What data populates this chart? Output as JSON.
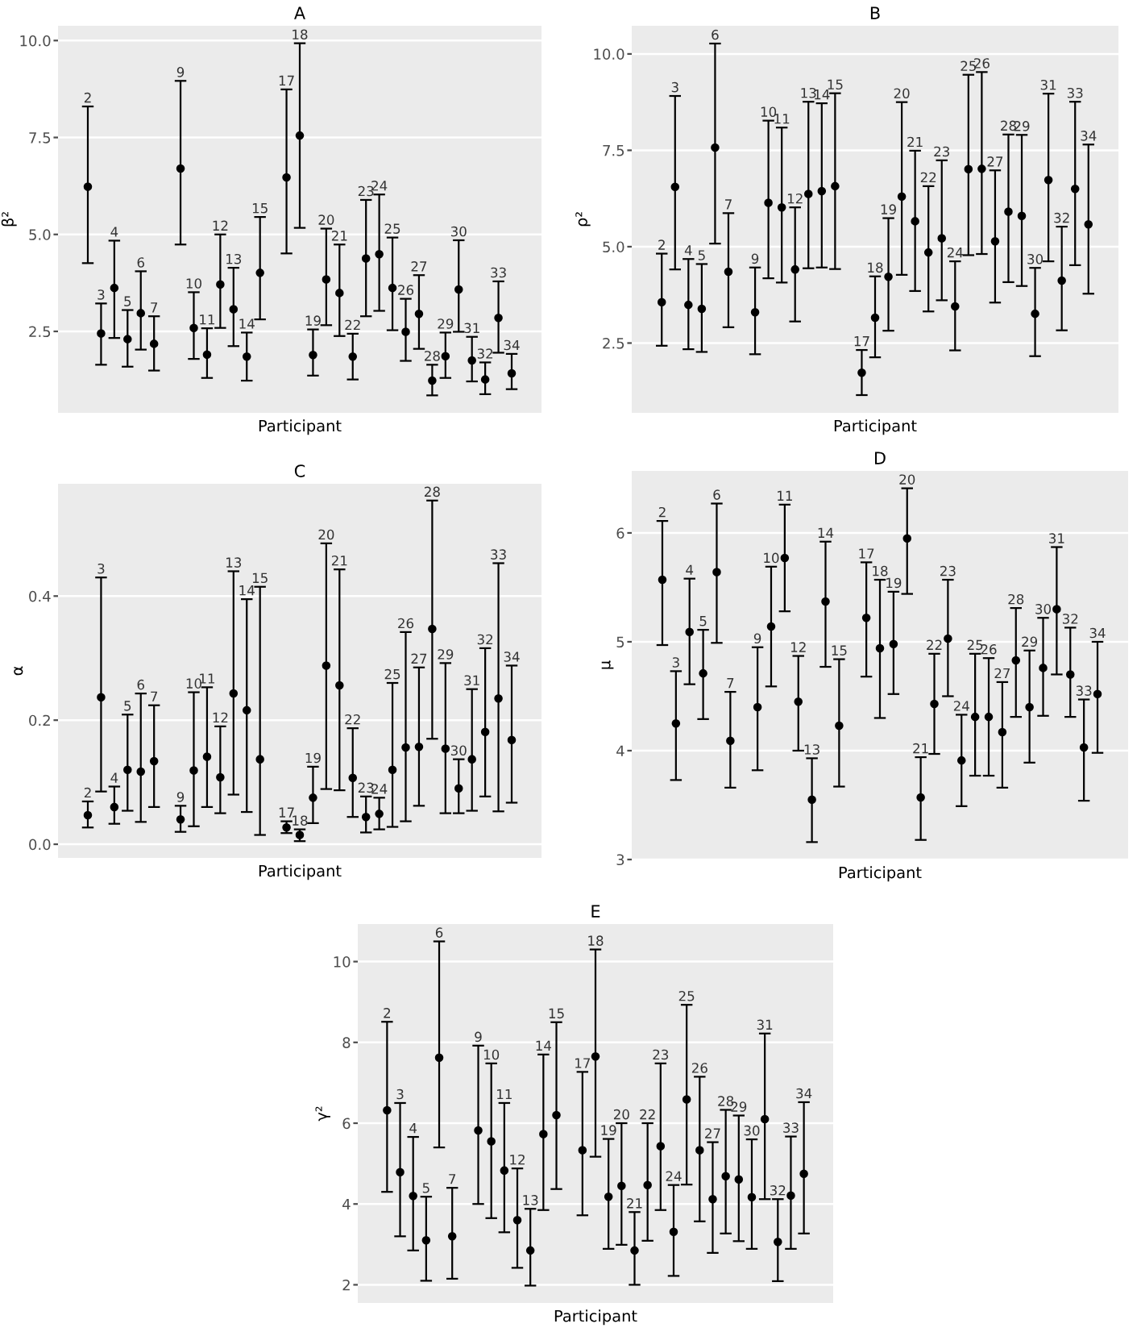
{
  "chart_data": [
    {
      "type": "scatter",
      "title": "A",
      "xlabel": "Participant",
      "ylabel": "β²",
      "color": "#000000",
      "marker": "circle",
      "grid": "y",
      "tick_labels": "y",
      "ylim": [
        0.4,
        10.38
      ],
      "yticks": [
        {
          "value": 2.5,
          "label": "2.5"
        },
        {
          "value": 5,
          "label": "5.0"
        },
        {
          "value": 7.5,
          "label": "7.5"
        },
        {
          "value": 10,
          "label": "10.0"
        }
      ],
      "categories": [
        "2",
        "3",
        "4",
        "5",
        "6",
        "7",
        null,
        "9",
        "10",
        "11",
        "12",
        "13",
        "14",
        "15",
        null,
        "17",
        "18",
        "19",
        "20",
        "21",
        "22",
        "23",
        "24",
        "25",
        "26",
        "27",
        "28",
        "29",
        "30",
        "31",
        "32",
        "33",
        "34"
      ],
      "values": [
        6.23,
        2.45,
        3.62,
        2.3,
        2.97,
        2.18,
        null,
        6.7,
        2.59,
        1.9,
        3.71,
        3.07,
        1.85,
        4.01,
        null,
        6.47,
        7.55,
        1.89,
        3.84,
        3.49,
        1.85,
        4.38,
        4.49,
        3.62,
        2.49,
        2.95,
        1.23,
        1.86,
        3.58,
        1.75,
        1.26,
        2.85,
        1.42
      ],
      "errors": [
        [
          4.26,
          8.3
        ],
        [
          1.64,
          3.22
        ],
        [
          2.33,
          4.84
        ],
        [
          1.59,
          3.05
        ],
        [
          2.03,
          4.05
        ],
        [
          1.49,
          2.89
        ],
        null,
        [
          4.74,
          8.96
        ],
        [
          1.79,
          3.51
        ],
        [
          1.3,
          2.58
        ],
        [
          2.59,
          5.0
        ],
        [
          2.12,
          4.14
        ],
        [
          1.23,
          2.47
        ],
        [
          2.81,
          5.45
        ],
        null,
        [
          4.51,
          8.74
        ],
        [
          5.17,
          9.93
        ],
        [
          1.36,
          2.55
        ],
        [
          2.66,
          5.15
        ],
        [
          2.38,
          4.74
        ],
        [
          1.26,
          2.44
        ],
        [
          2.89,
          5.89
        ],
        [
          3.03,
          6.03
        ],
        [
          2.53,
          4.92
        ],
        [
          1.74,
          3.34
        ],
        [
          2.05,
          3.95
        ],
        [
          0.85,
          1.64
        ],
        [
          1.3,
          2.47
        ],
        [
          2.49,
          4.85
        ],
        [
          1.21,
          2.36
        ],
        [
          0.88,
          1.7
        ],
        [
          1.95,
          3.79
        ],
        [
          1.01,
          1.92
        ]
      ]
    },
    {
      "type": "scatter",
      "title": "B",
      "xlabel": "Participant",
      "ylabel": "ρ²",
      "color": "#000000",
      "marker": "circle",
      "grid": "y",
      "tick_labels": "y",
      "ylim": [
        0.69,
        10.73
      ],
      "yticks": [
        {
          "value": 2.5,
          "label": "2.5"
        },
        {
          "value": 5,
          "label": "5.0"
        },
        {
          "value": 7.5,
          "label": "7.5"
        },
        {
          "value": 10,
          "label": "10.0"
        }
      ],
      "categories": [
        "2",
        "3",
        "4",
        "5",
        "6",
        "7",
        null,
        "9",
        "10",
        "11",
        "12",
        "13",
        "14",
        "15",
        null,
        "17",
        "18",
        "19",
        "20",
        "21",
        "22",
        "23",
        "24",
        "25",
        "26",
        "27",
        "28",
        "29",
        "30",
        "31",
        "32",
        "33",
        "34"
      ],
      "values": [
        3.56,
        6.55,
        3.49,
        3.39,
        7.57,
        4.35,
        null,
        3.3,
        6.14,
        6.02,
        4.41,
        6.37,
        6.44,
        6.57,
        null,
        1.73,
        3.16,
        4.22,
        6.3,
        5.66,
        4.85,
        5.22,
        3.45,
        7.01,
        7.02,
        5.14,
        5.91,
        5.8,
        3.26,
        6.73,
        4.12,
        6.5,
        5.58
      ],
      "errors": [
        [
          2.43,
          4.82
        ],
        [
          4.41,
          8.91
        ],
        [
          2.34,
          4.68
        ],
        [
          2.27,
          4.55
        ],
        [
          5.08,
          10.27
        ],
        [
          2.91,
          5.87
        ],
        null,
        [
          2.21,
          4.46
        ],
        [
          4.18,
          8.27
        ],
        [
          4.07,
          8.09
        ],
        [
          3.06,
          6.02
        ],
        [
          4.44,
          8.76
        ],
        [
          4.46,
          8.72
        ],
        [
          4.42,
          8.98
        ],
        null,
        [
          1.15,
          2.32
        ],
        [
          2.13,
          4.23
        ],
        [
          2.82,
          5.74
        ],
        [
          4.27,
          8.75
        ],
        [
          3.85,
          7.49
        ],
        [
          3.32,
          6.57
        ],
        [
          3.61,
          7.24
        ],
        [
          2.31,
          4.62
        ],
        [
          4.78,
          9.46
        ],
        [
          4.81,
          9.53
        ],
        [
          3.55,
          6.98
        ],
        [
          4.08,
          7.91
        ],
        [
          3.98,
          7.9
        ],
        [
          2.16,
          4.45
        ],
        [
          4.62,
          8.97
        ],
        [
          2.83,
          5.52
        ],
        [
          4.52,
          8.76
        ],
        [
          3.78,
          7.65
        ]
      ]
    },
    {
      "type": "scatter",
      "title": "C",
      "xlabel": "Participant",
      "ylabel": "α",
      "color": "#000000",
      "marker": "circle",
      "grid": "y",
      "tick_labels": "y",
      "ylim": [
        -0.022,
        0.581
      ],
      "yticks": [
        {
          "value": 0,
          "label": "0.0"
        },
        {
          "value": 0.2,
          "label": "0.2"
        },
        {
          "value": 0.4,
          "label": "0.4"
        }
      ],
      "categories": [
        "2",
        "3",
        "4",
        "5",
        "6",
        "7",
        null,
        "9",
        "10",
        "11",
        "12",
        "13",
        "14",
        "15",
        null,
        "17",
        "18",
        "19",
        "20",
        "21",
        "22",
        "23",
        "24",
        "25",
        "26",
        "27",
        "28",
        "29",
        "30",
        "31",
        "32",
        "33",
        "34"
      ],
      "values": [
        0.047,
        0.237,
        0.06,
        0.12,
        0.117,
        0.134,
        null,
        0.04,
        0.119,
        0.141,
        0.108,
        0.243,
        0.216,
        0.137,
        null,
        0.027,
        0.015,
        0.075,
        0.288,
        0.256,
        0.107,
        0.044,
        0.049,
        0.12,
        0.156,
        0.157,
        0.347,
        0.154,
        0.09,
        0.137,
        0.181,
        0.235,
        0.168
      ],
      "errors": [
        [
          0.027,
          0.069
        ],
        [
          0.085,
          0.43
        ],
        [
          0.033,
          0.093
        ],
        [
          0.054,
          0.209
        ],
        [
          0.036,
          0.243
        ],
        [
          0.06,
          0.224
        ],
        null,
        [
          0.02,
          0.062
        ],
        [
          0.029,
          0.245
        ],
        [
          0.06,
          0.253
        ],
        [
          0.05,
          0.19
        ],
        [
          0.08,
          0.44
        ],
        [
          0.052,
          0.395
        ],
        [
          0.015,
          0.415
        ],
        null,
        [
          0.018,
          0.037
        ],
        [
          0.005,
          0.024
        ],
        [
          0.034,
          0.125
        ],
        [
          0.089,
          0.485
        ],
        [
          0.087,
          0.443
        ],
        [
          0.044,
          0.187
        ],
        [
          0.019,
          0.077
        ],
        [
          0.024,
          0.075
        ],
        [
          0.028,
          0.26
        ],
        [
          0.037,
          0.342
        ],
        [
          0.062,
          0.285
        ],
        [
          0.17,
          0.554
        ],
        [
          0.05,
          0.292
        ],
        [
          0.05,
          0.137
        ],
        [
          0.054,
          0.25
        ],
        [
          0.077,
          0.316
        ],
        [
          0.053,
          0.453
        ],
        [
          0.067,
          0.288
        ]
      ]
    },
    {
      "type": "scatter",
      "title": "D",
      "xlabel": "Participant",
      "ylabel": "μ",
      "color": "#000000",
      "marker": "circle",
      "grid": "y",
      "tick_labels": "y",
      "ylim": [
        3.0,
        6.57
      ],
      "yticks": [
        3,
        4,
        5,
        6
      ],
      "categories": [
        "2",
        "3",
        "4",
        "5",
        "6",
        "7",
        null,
        "9",
        "10",
        "11",
        "12",
        "13",
        "14",
        "15",
        null,
        "17",
        "18",
        "19",
        "20",
        "21",
        "22",
        "23",
        "24",
        "25",
        "26",
        "27",
        "28",
        "29",
        "30",
        "31",
        "32",
        "33",
        "34"
      ],
      "values": [
        5.57,
        4.25,
        5.09,
        4.71,
        5.64,
        4.09,
        null,
        4.4,
        5.14,
        5.77,
        4.45,
        3.55,
        5.37,
        4.23,
        null,
        5.22,
        4.94,
        4.98,
        5.95,
        3.57,
        4.43,
        5.03,
        3.91,
        4.31,
        4.31,
        4.17,
        4.83,
        4.4,
        4.76,
        5.3,
        4.7,
        4.03,
        4.52
      ],
      "errors": [
        [
          4.97,
          6.11
        ],
        [
          3.73,
          4.73
        ],
        [
          4.61,
          5.58
        ],
        [
          4.29,
          5.11
        ],
        [
          4.99,
          6.27
        ],
        [
          3.66,
          4.54
        ],
        null,
        [
          3.82,
          4.95
        ],
        [
          4.59,
          5.69
        ],
        [
          5.28,
          6.26
        ],
        [
          4.0,
          4.87
        ],
        [
          3.16,
          3.93
        ],
        [
          4.77,
          5.92
        ],
        [
          3.67,
          4.84
        ],
        null,
        [
          4.68,
          5.73
        ],
        [
          4.3,
          5.57
        ],
        [
          4.52,
          5.46
        ],
        [
          5.44,
          6.41
        ],
        [
          3.18,
          3.94
        ],
        [
          3.97,
          4.89
        ],
        [
          4.5,
          5.57
        ],
        [
          3.49,
          4.33
        ],
        [
          3.77,
          4.89
        ],
        [
          3.77,
          4.85
        ],
        [
          3.66,
          4.63
        ],
        [
          4.31,
          5.31
        ],
        [
          3.89,
          4.92
        ],
        [
          4.32,
          5.22
        ],
        [
          4.7,
          5.87
        ],
        [
          4.31,
          5.13
        ],
        [
          3.54,
          4.47
        ],
        [
          3.98,
          5.0
        ]
      ]
    },
    {
      "type": "scatter",
      "title": "E",
      "xlabel": "Participant",
      "ylabel": "γ²",
      "color": "#000000",
      "marker": "circle",
      "grid": "y",
      "tick_labels": "y",
      "ylim": [
        1.55,
        10.93
      ],
      "yticks": [
        2,
        4,
        6,
        8,
        10
      ],
      "categories": [
        "2",
        "3",
        "4",
        "5",
        "6",
        "7",
        null,
        "9",
        "10",
        "11",
        "12",
        "13",
        "14",
        "15",
        null,
        "17",
        "18",
        "19",
        "20",
        "21",
        "22",
        "23",
        "24",
        "25",
        "26",
        "27",
        "28",
        "29",
        "30",
        "31",
        "32",
        "33",
        "34"
      ],
      "values": [
        6.32,
        4.79,
        4.2,
        3.1,
        7.62,
        3.2,
        null,
        5.82,
        5.55,
        4.83,
        3.6,
        2.85,
        5.73,
        6.2,
        null,
        5.33,
        7.65,
        4.18,
        4.45,
        2.85,
        4.47,
        5.43,
        3.31,
        6.59,
        5.33,
        4.12,
        4.69,
        4.61,
        4.17,
        6.1,
        3.06,
        4.21,
        4.75
      ],
      "errors": [
        [
          4.3,
          8.51
        ],
        [
          3.2,
          6.5
        ],
        [
          2.85,
          5.66
        ],
        [
          2.1,
          4.18
        ],
        [
          5.4,
          10.5
        ],
        [
          2.15,
          4.4
        ],
        null,
        [
          4.0,
          7.92
        ],
        [
          3.65,
          7.48
        ],
        [
          3.3,
          6.5
        ],
        [
          2.42,
          4.88
        ],
        [
          1.98,
          3.88
        ],
        [
          3.85,
          7.7
        ],
        [
          4.37,
          8.5
        ],
        null,
        [
          3.72,
          7.27
        ],
        [
          5.17,
          10.3
        ],
        [
          2.89,
          5.61
        ],
        [
          2.99,
          6.0
        ],
        [
          2.0,
          3.8
        ],
        [
          3.09,
          6.0
        ],
        [
          3.85,
          7.48
        ],
        [
          2.22,
          4.47
        ],
        [
          4.48,
          8.93
        ],
        [
          3.57,
          7.15
        ],
        [
          2.79,
          5.53
        ],
        [
          3.27,
          6.33
        ],
        [
          3.08,
          6.19
        ],
        [
          2.89,
          5.6
        ],
        [
          4.12,
          8.22
        ],
        [
          2.09,
          4.12
        ],
        [
          2.89,
          5.67
        ],
        [
          3.27,
          6.52
        ]
      ]
    }
  ]
}
